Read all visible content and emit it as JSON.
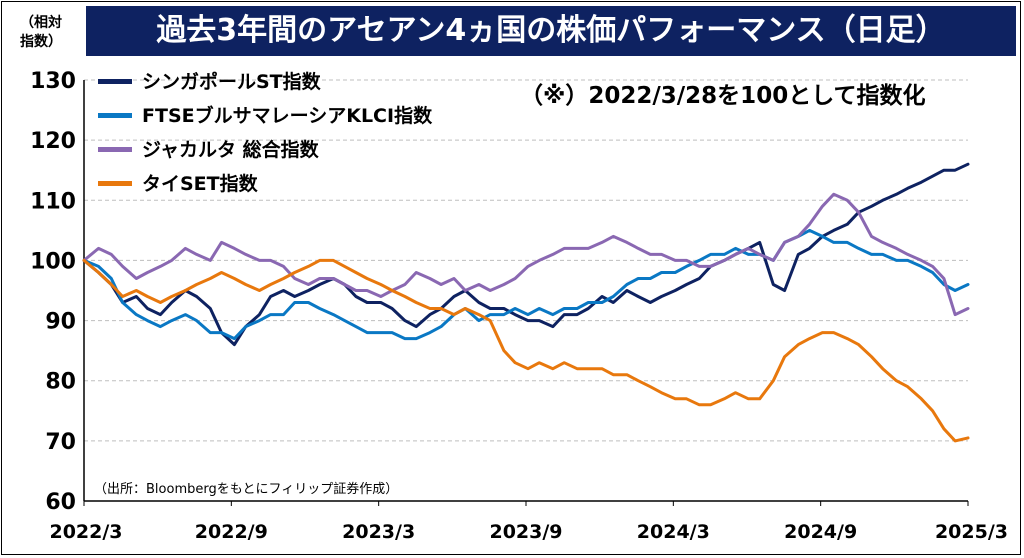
{
  "chart_data": {
    "type": "line",
    "title": "過去3年間のアセアン4ヵ国の株価パフォーマンス（日足）",
    "unit_label": "（相対\n指数）",
    "note": "（※）2022/3/28を100として指数化",
    "source": "（出所：Bloombergをもとにフィリップ証券作成）",
    "ylim": [
      60,
      130
    ],
    "yticks": [
      130,
      120,
      110,
      100,
      90,
      80,
      70,
      60
    ],
    "xlim": [
      "2022-03-28",
      "2025-03-31"
    ],
    "xticks": [
      "2022/3",
      "2022/9",
      "2023/3",
      "2023/9",
      "2024/3",
      "2024/9",
      "2025/3"
    ],
    "grid": "horizontal dashed",
    "legend_position": "top-left",
    "x": [
      "2022-03-28",
      "2022-04-15",
      "2022-05-01",
      "2022-05-15",
      "2022-06-01",
      "2022-06-15",
      "2022-07-01",
      "2022-07-15",
      "2022-08-01",
      "2022-08-15",
      "2022-09-01",
      "2022-09-15",
      "2022-10-01",
      "2022-10-15",
      "2022-11-01",
      "2022-11-15",
      "2022-12-01",
      "2022-12-15",
      "2023-01-01",
      "2023-01-15",
      "2023-02-01",
      "2023-02-15",
      "2023-03-01",
      "2023-03-15",
      "2023-04-01",
      "2023-04-15",
      "2023-05-01",
      "2023-05-15",
      "2023-06-01",
      "2023-06-15",
      "2023-07-01",
      "2023-07-15",
      "2023-08-01",
      "2023-08-15",
      "2023-09-01",
      "2023-09-15",
      "2023-10-01",
      "2023-10-15",
      "2023-11-01",
      "2023-11-15",
      "2023-12-01",
      "2023-12-15",
      "2024-01-01",
      "2024-01-15",
      "2024-02-01",
      "2024-02-15",
      "2024-03-01",
      "2024-03-15",
      "2024-04-01",
      "2024-04-15",
      "2024-05-01",
      "2024-05-15",
      "2024-06-01",
      "2024-06-15",
      "2024-07-01",
      "2024-07-15",
      "2024-08-01",
      "2024-08-15",
      "2024-09-01",
      "2024-09-15",
      "2024-10-01",
      "2024-10-15",
      "2024-11-01",
      "2024-11-15",
      "2024-12-01",
      "2024-12-15",
      "2025-01-01",
      "2025-01-15",
      "2025-02-01",
      "2025-02-15",
      "2025-03-01",
      "2025-03-15",
      "2025-03-31"
    ],
    "series": [
      {
        "name": "シンガポールST指数",
        "color": "#0e2261",
        "values": [
          100,
          98,
          96,
          93,
          94,
          92,
          91,
          93,
          95,
          94,
          92,
          88,
          86,
          89,
          91,
          94,
          95,
          94,
          95,
          96,
          97,
          96,
          94,
          93,
          93,
          92,
          90,
          89,
          91,
          92,
          94,
          95,
          93,
          92,
          92,
          91,
          90,
          90,
          89,
          91,
          91,
          92,
          94,
          93,
          95,
          94,
          93,
          94,
          95,
          96,
          97,
          99,
          100,
          101,
          102,
          103,
          96,
          95,
          101,
          102,
          104,
          105,
          106,
          108,
          109,
          110,
          111,
          112,
          113,
          114,
          115,
          115,
          116
        ]
      },
      {
        "name": "FTSEブルサマレーシアKLCI指数",
        "color": "#0a78c4",
        "values": [
          100,
          99,
          97,
          93,
          91,
          90,
          89,
          90,
          91,
          90,
          88,
          88,
          87,
          89,
          90,
          91,
          91,
          93,
          93,
          92,
          91,
          90,
          89,
          88,
          88,
          88,
          87,
          87,
          88,
          89,
          91,
          92,
          90,
          91,
          91,
          92,
          91,
          92,
          91,
          92,
          92,
          93,
          93,
          94,
          96,
          97,
          97,
          98,
          98,
          99,
          100,
          101,
          101,
          102,
          101,
          101,
          100,
          103,
          104,
          105,
          104,
          103,
          103,
          102,
          101,
          101,
          100,
          100,
          99,
          98,
          96,
          95,
          96
        ]
      },
      {
        "name": "ジャカルタ 総合指数",
        "color": "#8a68b2",
        "values": [
          100,
          102,
          101,
          99,
          97,
          98,
          99,
          100,
          102,
          101,
          100,
          103,
          102,
          101,
          100,
          100,
          99,
          97,
          96,
          97,
          97,
          96,
          95,
          95,
          94,
          95,
          96,
          98,
          97,
          96,
          97,
          95,
          96,
          95,
          96,
          97,
          99,
          100,
          101,
          102,
          102,
          102,
          103,
          104,
          103,
          102,
          101,
          101,
          100,
          100,
          99,
          99,
          100,
          101,
          102,
          101,
          100,
          103,
          104,
          106,
          109,
          111,
          110,
          108,
          104,
          103,
          102,
          101,
          100,
          99,
          97,
          91,
          92
        ]
      },
      {
        "name": "タイSET指数",
        "color": "#e8780d",
        "values": [
          100,
          98,
          96,
          94,
          95,
          94,
          93,
          94,
          95,
          96,
          97,
          98,
          97,
          96,
          95,
          96,
          97,
          98,
          99,
          100,
          100,
          99,
          98,
          97,
          96,
          95,
          94,
          93,
          92,
          92,
          91,
          92,
          91,
          90,
          85,
          83,
          82,
          83,
          82,
          83,
          82,
          82,
          82,
          81,
          81,
          80,
          79,
          78,
          77,
          77,
          76,
          76,
          77,
          78,
          77,
          77,
          80,
          84,
          86,
          87,
          88,
          88,
          87,
          86,
          84,
          82,
          80,
          79,
          77,
          75,
          72,
          70,
          70.5
        ]
      }
    ]
  }
}
